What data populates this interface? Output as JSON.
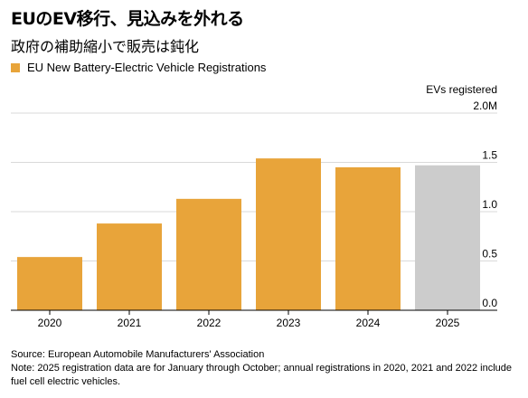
{
  "header": {
    "title": "EUのEV移行、見込みを外れる",
    "subtitle": "政府の補助縮小で販売は鈍化"
  },
  "footer": {
    "source": "Source: European Automobile Manufacturers' Association",
    "note": "Note: 2025 registration data are for January through October; annual registrations in 2020, 2021 and 2022 include fuel cell electric vehicles."
  },
  "colors": {
    "bar": "#E8A43A",
    "highlight": "#CCCCCC",
    "grid": "#D9D9D9",
    "axis": "#000000"
  },
  "chart_data": {
    "type": "bar",
    "title": "EUのEV移行、見込みを外れる",
    "subtitle": "政府の補助縮小で販売は鈍化",
    "categories": [
      "2020",
      "2021",
      "2022",
      "2023",
      "2024",
      "2025"
    ],
    "series": [
      {
        "name": "EU New Battery-Electric Vehicle Registrations",
        "values": [
          0.54,
          0.88,
          1.13,
          1.54,
          1.45,
          1.47
        ]
      }
    ],
    "highlight_index": 5,
    "ylabel": "EVs registered",
    "ylim": [
      0,
      2.0
    ],
    "yticks": [
      {
        "value": 0,
        "label": "0.0"
      },
      {
        "value": 0.5,
        "label": "0.5"
      },
      {
        "value": 1.0,
        "label": "1.0"
      },
      {
        "value": 1.5,
        "label": "1.5"
      },
      {
        "value": 2.0,
        "label": "2.0M"
      }
    ],
    "grid": true,
    "y_axis_side": "right",
    "legend": "top-left"
  }
}
